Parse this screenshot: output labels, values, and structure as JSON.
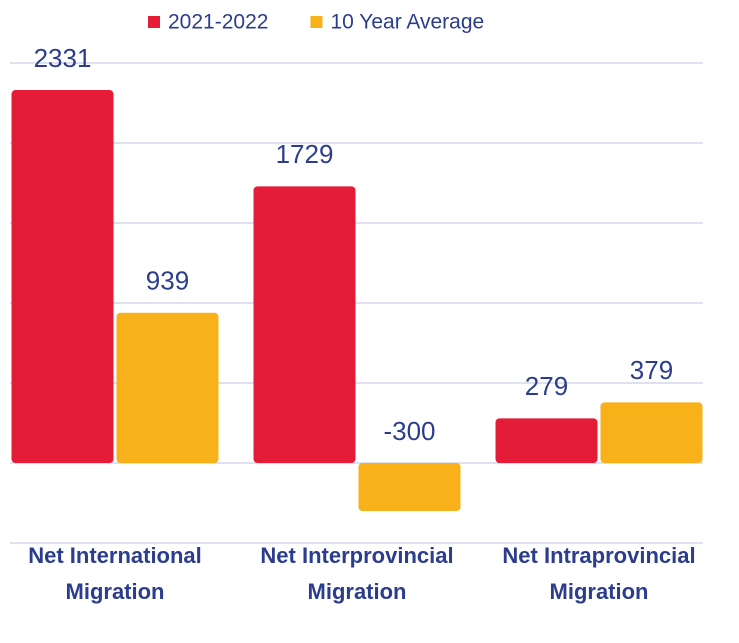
{
  "chart_data": {
    "type": "bar",
    "categories": [
      "Net International Migration",
      "Net Interprovincial Migration",
      "Net Intraprovincial Migration"
    ],
    "series": [
      {
        "name": "2021-2022",
        "color": "#e41c38",
        "values": [
          2331,
          1729,
          279
        ]
      },
      {
        "name": "10 Year Average",
        "color": "#f9b11a",
        "values": [
          939,
          -300,
          379
        ]
      }
    ],
    "ylim": [
      -500,
      2500
    ],
    "yticks": [
      -500,
      0,
      500,
      1000,
      1500,
      2000,
      2500
    ],
    "grid": true
  }
}
